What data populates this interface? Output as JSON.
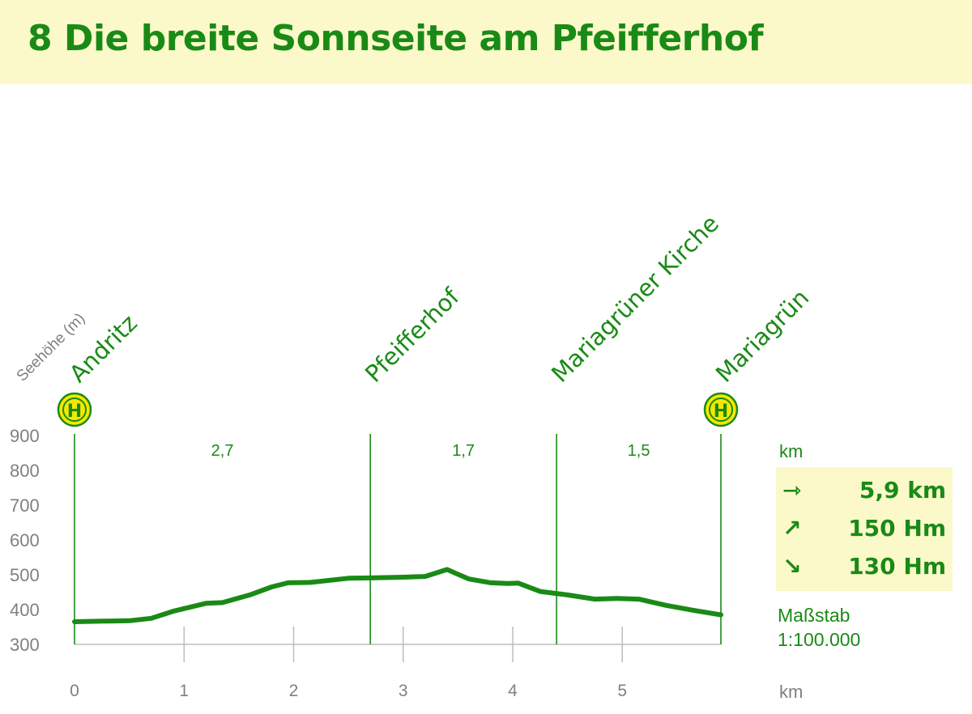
{
  "header": {
    "title": "8 Die breite Sonnseite am Pfeifferhof"
  },
  "chart_data": {
    "type": "line",
    "ylabel": "Seehöhe (m)",
    "xlabel": "km",
    "ylim": [
      300,
      900
    ],
    "xlim": [
      0,
      5.9
    ],
    "y_ticks": [
      "300",
      "400",
      "500",
      "600",
      "700",
      "800",
      "900"
    ],
    "x_ticks": [
      "0",
      "1",
      "2",
      "3",
      "4",
      "5"
    ],
    "x": [
      0,
      0.3,
      0.5,
      0.7,
      0.9,
      1.2,
      1.35,
      1.6,
      1.8,
      1.95,
      2.15,
      2.5,
      2.7,
      3.0,
      3.2,
      3.4,
      3.6,
      3.8,
      3.95,
      4.05,
      4.25,
      4.5,
      4.75,
      4.95,
      5.15,
      5.4,
      5.65,
      5.9
    ],
    "values": [
      365,
      367,
      368,
      375,
      395,
      418,
      420,
      442,
      465,
      477,
      478,
      490,
      491,
      493,
      495,
      515,
      488,
      477,
      475,
      476,
      452,
      442,
      430,
      432,
      430,
      412,
      398,
      385
    ],
    "waypoints": [
      {
        "name": "Andritz",
        "km": 0,
        "stop": true
      },
      {
        "name": "Pfeifferhof",
        "km": 2.7,
        "stop": false
      },
      {
        "name": "Mariagrüner Kirche",
        "km": 4.4,
        "stop": false
      },
      {
        "name": "Mariagrün",
        "km": 5.9,
        "stop": true
      }
    ],
    "segments": [
      {
        "label": "2,7",
        "from": 0,
        "to": 2.7
      },
      {
        "label": "1,7",
        "from": 2.7,
        "to": 4.4
      },
      {
        "label": "1,5",
        "from": 4.4,
        "to": 5.9
      }
    ],
    "stop_symbol": "H",
    "line_color": "#1a8a16",
    "axis_color": "#808080"
  },
  "sidebar": {
    "segment_unit": "km",
    "stats": [
      {
        "icon": "⇾",
        "icon_name": "distance-icon",
        "value": "5,9 km"
      },
      {
        "icon": "↗",
        "icon_name": "ascent-icon",
        "value": "150 Hm"
      },
      {
        "icon": "↘",
        "icon_name": "descent-icon",
        "value": "130 Hm"
      }
    ],
    "scale_label": "Maßstab",
    "scale_value": "1:100.000",
    "x_unit": "km"
  }
}
